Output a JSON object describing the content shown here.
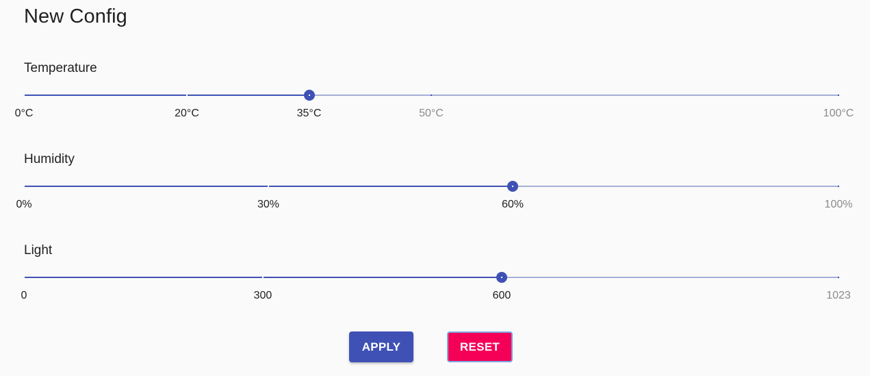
{
  "title": "New Config",
  "colors": {
    "primary": "#3f51b5",
    "secondary": "#f50057",
    "rail": "#a7aed9"
  },
  "sliders": [
    {
      "label": "Temperature",
      "min": 0,
      "max": 100,
      "value": 35,
      "marks": [
        {
          "value": 0,
          "label": "0°C"
        },
        {
          "value": 20,
          "label": "20°C"
        },
        {
          "value": 35,
          "label": "35°C"
        },
        {
          "value": 50,
          "label": "50°C"
        },
        {
          "value": 100,
          "label": "100°C"
        }
      ]
    },
    {
      "label": "Humidity",
      "min": 0,
      "max": 100,
      "value": 60,
      "marks": [
        {
          "value": 0,
          "label": "0%"
        },
        {
          "value": 30,
          "label": "30%"
        },
        {
          "value": 60,
          "label": "60%"
        },
        {
          "value": 100,
          "label": "100%"
        }
      ]
    },
    {
      "label": "Light",
      "min": 0,
      "max": 1023,
      "value": 600,
      "marks": [
        {
          "value": 0,
          "label": "0"
        },
        {
          "value": 300,
          "label": "300"
        },
        {
          "value": 600,
          "label": "600"
        },
        {
          "value": 1023,
          "label": "1023"
        }
      ]
    }
  ],
  "buttons": {
    "apply_label": "APPLY",
    "reset_label": "RESET"
  }
}
